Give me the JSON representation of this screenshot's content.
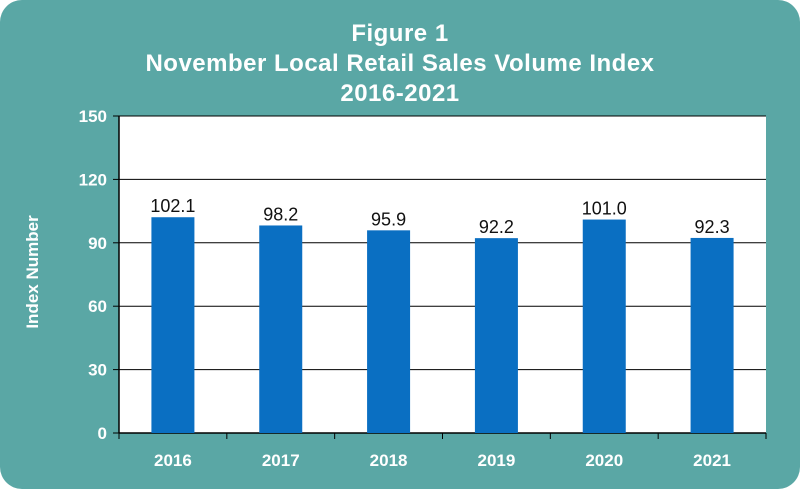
{
  "chart_data": {
    "type": "bar",
    "title": "Figure 1",
    "subtitle": "November Local Retail Sales Volume Index",
    "subtitle2": "2016-2021",
    "xlabel": "",
    "ylabel": "Index Number",
    "categories": [
      "2016",
      "2017",
      "2018",
      "2019",
      "2020",
      "2021"
    ],
    "values": [
      102.1,
      98.2,
      95.9,
      92.2,
      101.0,
      92.3
    ],
    "data_labels": [
      "102.1",
      "98.2",
      "95.9",
      "92.2",
      "101.0",
      "92.3"
    ],
    "ylim": [
      0,
      150
    ],
    "yticks": [
      "0",
      "30",
      "60",
      "90",
      "120",
      "150"
    ],
    "grid": true,
    "legend": "none",
    "colors": {
      "background": "#5aa7a5",
      "plot_area": "#ffffff",
      "bar": "#0a6fc2",
      "gridline": "#000000"
    }
  }
}
